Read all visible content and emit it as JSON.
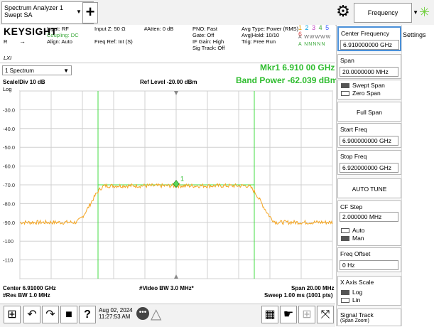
{
  "tabs": {
    "mode_line1": "Spectrum Analyzer 1",
    "mode_line2": "Swept SA",
    "add_label": "+",
    "measure_label": "Frequency"
  },
  "header": {
    "brand": "KEYSIGHT",
    "col1": [
      "Input: RF",
      "Coupling: DC",
      "Align: Auto"
    ],
    "col1b": [
      "R",
      "LXI"
    ],
    "col2": [
      "Input Z: 50 Ω",
      "",
      "Freq Ref: Int (S)"
    ],
    "col3": [
      "#Atten: 0 dB"
    ],
    "col4": [
      "PNO: Fast",
      "Gate: Off",
      "IF Gain: High",
      "Sig Track: Off"
    ],
    "col5": [
      "Avg Type: Power (RMS)",
      "Avg|Hold: 10/10",
      "Trig: Free Run"
    ],
    "trace_numbers": [
      "1",
      "2",
      "3",
      "4",
      "5",
      "6"
    ],
    "trace_types": "A WWWWW",
    "trace_dets": "A NNNNN"
  },
  "plot": {
    "window_select": "1 Spectrum",
    "scale": "Scale/Div 10 dB",
    "log": "Log",
    "ref_level": "Ref Level -20.00 dBm",
    "marker": "Mkr1  6.910 00 GHz",
    "band_power": "Band Power -62.039 dBm",
    "marker_label": "1",
    "y_labels": [
      "-30.0",
      "-40.0",
      "-50.0",
      "-60.0",
      "-70.0",
      "-80.0",
      "-90.0",
      "-100",
      "-110"
    ],
    "center": "Center 6.91000 GHz",
    "res_bw": "#Res BW 1.0 MHz",
    "video_bw": "#Video BW 3.0 MHz*",
    "span": "Span 20.00 MHz",
    "sweep": "Sweep 1.00 ms (1001 pts)"
  },
  "chart_data": {
    "type": "line",
    "x_unit": "GHz",
    "xlim": [
      6.9,
      6.92
    ],
    "ylim": [
      -120,
      -20
    ],
    "y_div": 10,
    "trace_color": "#f5a623",
    "grid": true,
    "band_edges": [
      6.905,
      6.915
    ],
    "marker": {
      "x": 6.91,
      "y": -69.5
    },
    "noise_floor": -90,
    "channel_level": -70.5
  },
  "status": {
    "date_line1": "Aug 02, 2024",
    "date_line2": "11:27:53 AM"
  },
  "panel": {
    "settings_label": "Settings",
    "center_freq_label": "Center Frequency",
    "center_freq_value": "6.910000000 GHz",
    "span_label": "Span",
    "span_value": "20.0000000 MHz",
    "swept_span": "Swept Span",
    "zero_span": "Zero Span",
    "full_span": "Full Span",
    "start_label": "Start Freq",
    "start_value": "6.900000000 GHz",
    "stop_label": "Stop Freq",
    "stop_value": "6.920000000 GHz",
    "auto_tune": "AUTO TUNE",
    "cf_step_label": "CF Step",
    "cf_step_value": "2.000000 MHz",
    "auto": "Auto",
    "man": "Man",
    "freq_offset_label": "Freq Offset",
    "freq_offset_value": "0 Hz",
    "x_axis_label": "X Axis Scale",
    "log": "Log",
    "lin": "Lin",
    "signal_track_label": "Signal Track",
    "signal_track_sub": "(Span Zoom)"
  }
}
